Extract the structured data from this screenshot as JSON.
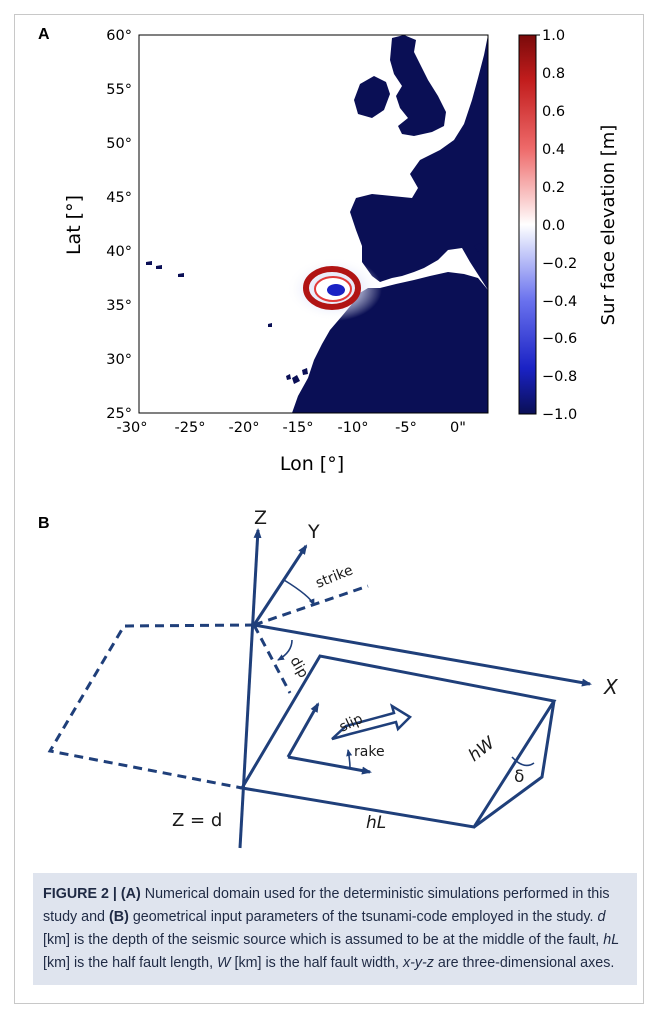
{
  "panel_a": {
    "label": "A",
    "xlabel": "Lon [°]",
    "ylabel": "Lat [°]",
    "x_ticks": [
      "-30°",
      "-25°",
      "-20°",
      "-15°",
      "-10°",
      "-5°",
      "0\""
    ],
    "y_ticks": [
      "60°",
      "55°",
      "50°",
      "45°",
      "40°",
      "35°",
      "30°",
      "25°"
    ],
    "colorbar_label": "Sur face elevation [m]",
    "colorbar_ticks": [
      "1.0",
      "0.8",
      "0.6",
      "0.4",
      "0.2",
      "0.0",
      "−0.2",
      "−0.4",
      "−0.6",
      "−0.8",
      "−1.0"
    ],
    "colors": {
      "land": "#0a0f55",
      "max": "#7a0a0a",
      "zero": "#ffffff",
      "min": "#0a0f55"
    }
  },
  "panel_b": {
    "label": "B",
    "labels": {
      "z": "Z",
      "y": "Y",
      "x": "X",
      "strike": "strike",
      "dip": "dip",
      "slip": "slip",
      "rake": "rake",
      "hw": "hW",
      "delta": "δ",
      "zd": "Z = d",
      "hl": "hL"
    },
    "colors": {
      "line": "#1f3f7a"
    }
  },
  "caption": {
    "figure_label": "FIGURE 2 |",
    "a_label": "(A)",
    "a_text": " Numerical domain used for the deterministic simulations performed in this study and ",
    "b_label": "(B)",
    "b_text": " geometrical input parameters of the tsunami-code employed in the study. ",
    "d_sym": "d",
    "d_text": " [km] is the depth of the seismic source which is assumed to be at the middle of the fault, ",
    "hl_sym": "hL",
    "hl_text": " [km] is the half fault length, ",
    "w_sym": "W",
    "w_text": " [km] is the half fault width, ",
    "xyz_sym": "x-y-z",
    "xyz_text": " are three-dimensional axes."
  }
}
